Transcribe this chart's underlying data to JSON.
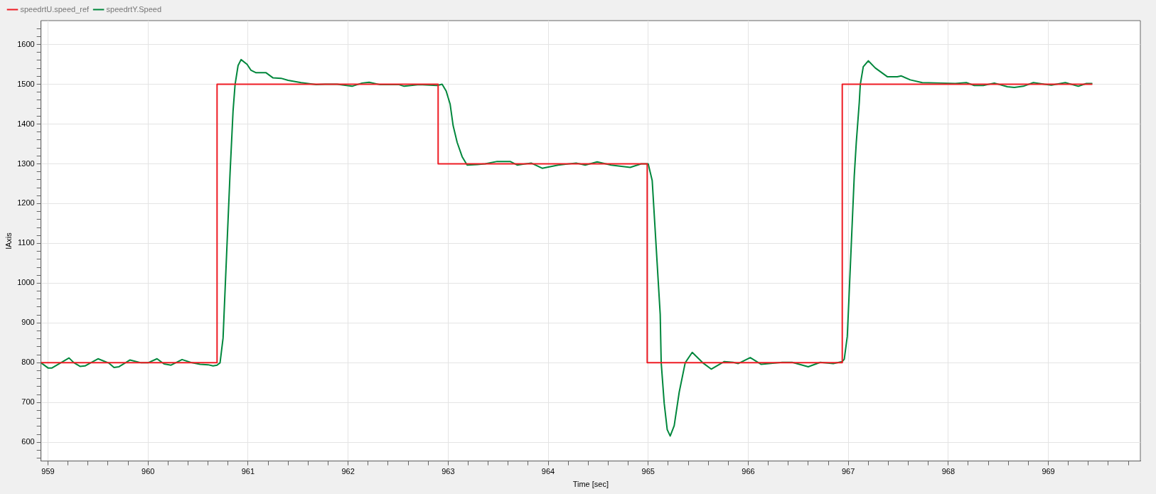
{
  "chart_data": {
    "type": "line",
    "xlabel": "Time [sec]",
    "ylabel": "lAxis",
    "legend": "top left",
    "grid": true,
    "marker": "none",
    "line_style": "solid",
    "xlim": [
      958.93,
      969.92
    ],
    "ylim": [
      553,
      1660
    ],
    "xticks": [
      959,
      {
        "value": 959.2,
        "label": null
      },
      {
        "value": 959.4,
        "label": null
      },
      {
        "value": 959.6,
        "label": null
      },
      {
        "value": 959.8,
        "label": null
      },
      960,
      {
        "value": 960.2,
        "label": null
      },
      {
        "value": 960.4,
        "label": null
      },
      {
        "value": 960.6,
        "label": null
      },
      {
        "value": 960.8,
        "label": null
      },
      961,
      {
        "value": 961.2,
        "label": null
      },
      {
        "value": 961.4,
        "label": null
      },
      {
        "value": 961.6,
        "label": null
      },
      {
        "value": 961.8,
        "label": null
      },
      962,
      {
        "value": 962.2,
        "label": null
      },
      {
        "value": 962.4,
        "label": null
      },
      {
        "value": 962.6,
        "label": null
      },
      {
        "value": 962.8,
        "label": null
      },
      963,
      {
        "value": 963.2,
        "label": null
      },
      {
        "value": 963.4,
        "label": null
      },
      {
        "value": 963.6,
        "label": null
      },
      {
        "value": 963.8,
        "label": null
      },
      964,
      {
        "value": 964.2,
        "label": null
      },
      {
        "value": 964.4,
        "label": null
      },
      {
        "value": 964.6,
        "label": null
      },
      {
        "value": 964.8,
        "label": null
      },
      965,
      {
        "value": 965.2,
        "label": null
      },
      {
        "value": 965.4,
        "label": null
      },
      {
        "value": 965.6,
        "label": null
      },
      {
        "value": 965.8,
        "label": null
      },
      966,
      {
        "value": 966.2,
        "label": null
      },
      {
        "value": 966.4,
        "label": null
      },
      {
        "value": 966.6,
        "label": null
      },
      {
        "value": 966.8,
        "label": null
      },
      967,
      {
        "value": 967.2,
        "label": null
      },
      {
        "value": 967.4,
        "label": null
      },
      {
        "value": 967.6,
        "label": null
      },
      {
        "value": 967.8,
        "label": null
      },
      968,
      {
        "value": 968.2,
        "label": null
      },
      {
        "value": 968.4,
        "label": null
      },
      {
        "value": 968.6,
        "label": null
      },
      {
        "value": 968.8,
        "label": null
      },
      969,
      {
        "value": 969.2,
        "label": null
      },
      {
        "value": 969.4,
        "label": null
      },
      {
        "value": 969.6,
        "label": null
      },
      {
        "value": 969.8,
        "label": null
      }
    ],
    "yticks": [
      {
        "value": 560,
        "label": null
      },
      {
        "value": 580,
        "label": null
      },
      600,
      {
        "value": 620,
        "label": null
      },
      {
        "value": 640,
        "label": null
      },
      {
        "value": 660,
        "label": null
      },
      {
        "value": 680,
        "label": null
      },
      700,
      {
        "value": 720,
        "label": null
      },
      {
        "value": 740,
        "label": null
      },
      {
        "value": 760,
        "label": null
      },
      {
        "value": 780,
        "label": null
      },
      800,
      {
        "value": 820,
        "label": null
      },
      {
        "value": 840,
        "label": null
      },
      {
        "value": 860,
        "label": null
      },
      {
        "value": 880,
        "label": null
      },
      900,
      {
        "value": 920,
        "label": null
      },
      {
        "value": 940,
        "label": null
      },
      {
        "value": 960,
        "label": null
      },
      {
        "value": 980,
        "label": null
      },
      1000,
      {
        "value": 1020,
        "label": null
      },
      {
        "value": 1040,
        "label": null
      },
      {
        "value": 1060,
        "label": null
      },
      {
        "value": 1080,
        "label": null
      },
      1100,
      {
        "value": 1120,
        "label": null
      },
      {
        "value": 1140,
        "label": null
      },
      {
        "value": 1160,
        "label": null
      },
      {
        "value": 1180,
        "label": null
      },
      1200,
      {
        "value": 1220,
        "label": null
      },
      {
        "value": 1240,
        "label": null
      },
      {
        "value": 1260,
        "label": null
      },
      {
        "value": 1280,
        "label": null
      },
      1300,
      {
        "value": 1320,
        "label": null
      },
      {
        "value": 1340,
        "label": null
      },
      {
        "value": 1360,
        "label": null
      },
      {
        "value": 1380,
        "label": null
      },
      1400,
      {
        "value": 1420,
        "label": null
      },
      {
        "value": 1440,
        "label": null
      },
      {
        "value": 1460,
        "label": null
      },
      {
        "value": 1480,
        "label": null
      },
      1500,
      {
        "value": 1520,
        "label": null
      },
      {
        "value": 1540,
        "label": null
      },
      {
        "value": 1560,
        "label": null
      },
      {
        "value": 1580,
        "label": null
      },
      1600,
      {
        "value": 1620,
        "label": null
      },
      {
        "value": 1640,
        "label": null
      }
    ],
    "series": [
      {
        "name": "speedrtU.speed_ref",
        "type": "step",
        "color": "#ee1c24",
        "x": [
          958.93,
          960.69,
          962.9,
          964.99,
          966.94,
          969.44
        ],
        "values": [
          800,
          1500,
          1300,
          800,
          1500,
          1500
        ]
      },
      {
        "name": "speedrtY.Speed",
        "color": "#00873c",
        "x": [
          958.93,
          959.0,
          959.04,
          959.21,
          959.26,
          959.32,
          959.37,
          959.5,
          959.61,
          959.66,
          959.71,
          959.82,
          959.93,
          960.0,
          960.09,
          960.16,
          960.23,
          960.34,
          960.44,
          960.52,
          960.6,
          960.65,
          960.69,
          960.72,
          960.75,
          960.76,
          960.82,
          960.85,
          960.87,
          960.9,
          960.93,
          960.99,
          961.03,
          961.08,
          961.18,
          961.25,
          961.33,
          961.4,
          961.53,
          961.68,
          961.77,
          961.89,
          962.04,
          962.14,
          962.21,
          962.32,
          962.51,
          962.56,
          962.71,
          962.89,
          962.94,
          962.98,
          963.02,
          963.05,
          963.09,
          963.14,
          963.19,
          963.29,
          963.37,
          963.49,
          963.62,
          963.69,
          963.83,
          963.94,
          964.1,
          964.28,
          964.37,
          964.49,
          964.63,
          964.82,
          964.93,
          965.0,
          965.04,
          965.12,
          965.13,
          965.16,
          965.19,
          965.22,
          965.26,
          965.31,
          965.37,
          965.44,
          965.55,
          965.63,
          965.76,
          965.85,
          965.9,
          966.02,
          966.13,
          966.34,
          966.44,
          966.6,
          966.72,
          966.85,
          966.94,
          966.96,
          966.99,
          967.0,
          967.06,
          967.08,
          967.11,
          967.12,
          967.15,
          967.2,
          967.27,
          967.39,
          967.49,
          967.53,
          967.62,
          967.74,
          967.93,
          968.07,
          968.18,
          968.26,
          968.35,
          968.46,
          968.59,
          968.66,
          968.75,
          968.85,
          968.96,
          969.03,
          969.17,
          969.3,
          969.38,
          969.44
        ],
        "values": [
          800,
          787,
          787,
          812,
          800,
          791,
          792,
          810,
          799,
          788,
          790,
          807,
          800,
          800,
          810,
          797,
          794,
          808,
          800,
          796,
          795,
          792,
          794,
          800,
          862,
          922,
          1277,
          1433,
          1499,
          1547,
          1562,
          1550,
          1535,
          1529,
          1529,
          1516,
          1515,
          1510,
          1504,
          1499,
          1500,
          1500,
          1495,
          1503,
          1505,
          1499,
          1499,
          1495,
          1499,
          1497,
          1500,
          1483,
          1450,
          1396,
          1354,
          1318,
          1297,
          1298,
          1300,
          1306,
          1306,
          1297,
          1302,
          1289,
          1297,
          1302,
          1297,
          1305,
          1297,
          1291,
          1300,
          1300,
          1258,
          922,
          800,
          698,
          632,
          616,
          642,
          726,
          800,
          826,
          799,
          784,
          803,
          801,
          798,
          813,
          796,
          801,
          801,
          790,
          801,
          798,
          803,
          809,
          866,
          922,
          1270,
          1353,
          1454,
          1499,
          1544,
          1559,
          1541,
          1519,
          1519,
          1521,
          1511,
          1504,
          1503,
          1502,
          1504,
          1497,
          1497,
          1503,
          1494,
          1492,
          1495,
          1504,
          1500,
          1498,
          1504,
          1495,
          1502,
          1502
        ]
      }
    ]
  }
}
